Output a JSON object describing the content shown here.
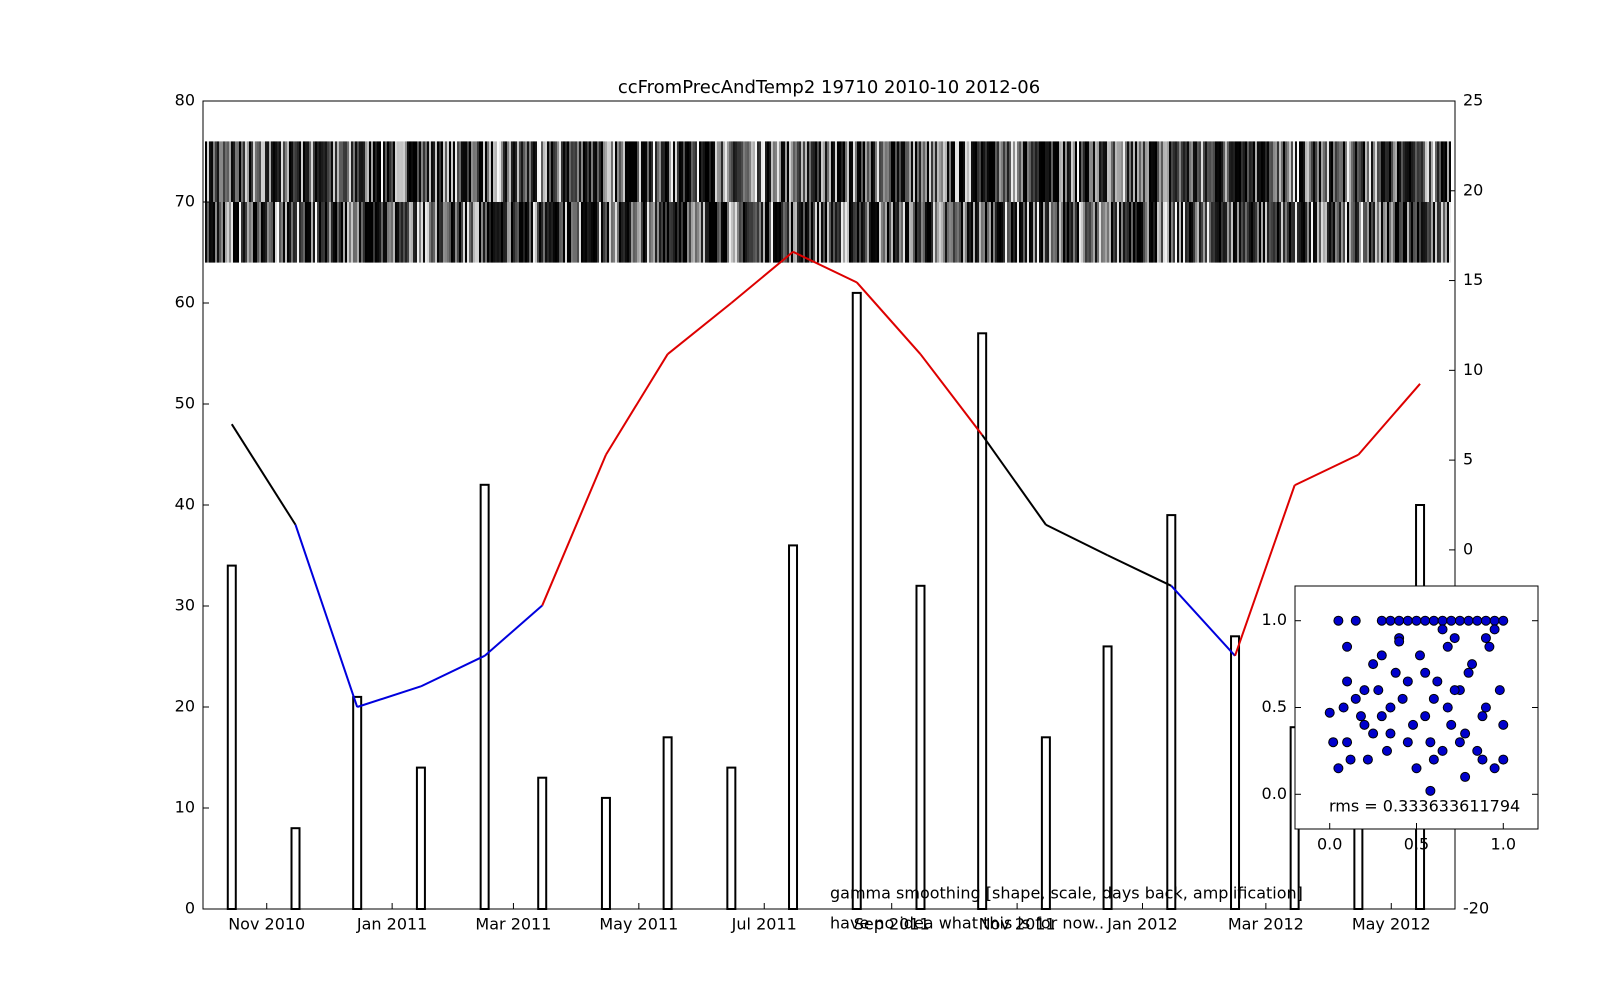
{
  "chart_data": {
    "type": "bar-line",
    "title": "ccFromPrecAndTemp2 19710 2010-10 2012-06",
    "x": [
      "2010-10",
      "2010-11",
      "2010-12",
      "2011-01",
      "2011-02",
      "2011-03",
      "2011-04",
      "2011-05",
      "2011-06",
      "2011-07",
      "2011-08",
      "2011-09",
      "2011-10",
      "2011-11",
      "2011-12",
      "2012-01",
      "2012-02",
      "2012-03",
      "2012-04",
      "2012-05"
    ],
    "xlim": [
      "2010-10",
      "2012-06"
    ],
    "xticks": [
      {
        "value": "2010-11",
        "label": "Nov 2010"
      },
      {
        "value": "2011-01",
        "label": "Jan 2011"
      },
      {
        "value": "2011-03",
        "label": "Mar 2011"
      },
      {
        "value": "2011-05",
        "label": "May 2011"
      },
      {
        "value": "2011-07",
        "label": "Jul 2011"
      },
      {
        "value": "2011-09",
        "label": "Sep 2011"
      },
      {
        "value": "2011-11",
        "label": "Nov 2011"
      },
      {
        "value": "2012-01",
        "label": "Jan 2012"
      },
      {
        "value": "2012-03",
        "label": "Mar 2012"
      },
      {
        "value": "2012-05",
        "label": "May 2012"
      }
    ],
    "ylim": [
      0,
      80
    ],
    "yticks": [
      0,
      10,
      20,
      30,
      40,
      50,
      60,
      70,
      80
    ],
    "y2lim": [
      -20,
      25
    ],
    "y2ticks": [
      -20,
      -15,
      -10,
      -5,
      0,
      5,
      10,
      15,
      20,
      25
    ],
    "series": [
      {
        "kind": "bar",
        "color": "#000000",
        "values": [
          34,
          8,
          21,
          14,
          42,
          13,
          11,
          17,
          14,
          36,
          61,
          32,
          57,
          17,
          26,
          39,
          27,
          18,
          12,
          40
        ]
      },
      {
        "kind": "line",
        "axis": "y2",
        "values": [
          7.0,
          1.4,
          -8.75,
          -7.6,
          -5.9,
          -3.1,
          5.3,
          10.9,
          13.75,
          16.6,
          14.9,
          10.9,
          6.4,
          1.4,
          -0.3,
          -2.0,
          -5.9,
          3.6,
          5.3,
          9.25
        ],
        "colors": [
          "#dd0000",
          "#000000",
          "#0000dd",
          "#0000dd",
          "#0000dd",
          "#0000dd",
          "#dd0000",
          "#dd0000",
          "#dd0000",
          "#dd0000",
          "#dd0000",
          "#dd0000",
          "#dd0000",
          "#000000",
          "#000000",
          "#000000",
          "#0000dd",
          "#dd0000",
          "#dd0000",
          "#dd0000"
        ]
      }
    ],
    "annotations": [
      "gamma smoothing [shape, scale, days back, amplification]",
      "have no idea what this is for now.."
    ],
    "inset": {
      "type": "scatter",
      "color": "#0000cc",
      "text": "rms = 0.333633611794",
      "xlim": [
        -0.2,
        1.2
      ],
      "ylim": [
        -0.2,
        1.2
      ],
      "xticks": [
        {
          "value": 0,
          "label": "0.0"
        },
        {
          "value": 0.5,
          "label": "0.5"
        },
        {
          "value": 1,
          "label": "1.0"
        }
      ],
      "yticks": [
        {
          "value": 0,
          "label": "0.0"
        },
        {
          "value": 0.5,
          "label": "0.5"
        },
        {
          "value": 1,
          "label": "1.0"
        }
      ],
      "x": [
        0.0,
        0.05,
        0.1,
        0.15,
        0.2,
        0.3,
        0.35,
        0.4,
        0.45,
        0.5,
        0.55,
        0.6,
        0.65,
        0.7,
        0.75,
        0.8,
        0.85,
        0.9,
        0.95,
        1.0,
        0.02,
        0.08,
        0.12,
        0.18,
        0.25,
        0.28,
        0.33,
        0.38,
        0.42,
        0.48,
        0.52,
        0.58,
        0.62,
        0.68,
        0.72,
        0.78,
        0.82,
        0.88,
        0.92,
        0.98,
        0.05,
        0.1,
        0.2,
        0.3,
        0.35,
        0.45,
        0.55,
        0.6,
        0.65,
        0.7,
        0.75,
        0.85,
        0.9,
        0.95,
        1.0,
        0.1,
        0.22,
        0.3,
        0.4,
        0.5,
        0.6,
        0.68,
        0.75,
        0.8,
        0.88,
        0.95,
        0.15,
        0.25,
        0.35,
        0.45,
        0.55,
        0.65,
        0.72,
        0.9,
        1.0,
        0.58,
        0.78,
        0.4
      ],
      "y": [
        0.47,
        1.0,
        0.3,
        1.0,
        0.4,
        1.0,
        1.0,
        1.0,
        1.0,
        1.0,
        1.0,
        1.0,
        1.0,
        1.0,
        1.0,
        1.0,
        1.0,
        1.0,
        1.0,
        1.0,
        0.3,
        0.5,
        0.2,
        0.45,
        0.35,
        0.6,
        0.25,
        0.7,
        0.55,
        0.4,
        0.8,
        0.3,
        0.65,
        0.5,
        0.9,
        0.35,
        0.75,
        0.45,
        0.85,
        0.6,
        0.15,
        0.85,
        0.6,
        0.8,
        0.5,
        0.3,
        0.7,
        0.2,
        0.95,
        0.4,
        0.6,
        0.25,
        0.9,
        0.15,
        0.4,
        0.65,
        0.2,
        0.45,
        0.9,
        0.15,
        0.55,
        0.85,
        0.3,
        0.7,
        0.2,
        0.95,
        0.55,
        0.75,
        0.35,
        0.65,
        0.45,
        0.25,
        0.6,
        0.5,
        0.2,
        0.02,
        0.1,
        0.88
      ]
    }
  }
}
